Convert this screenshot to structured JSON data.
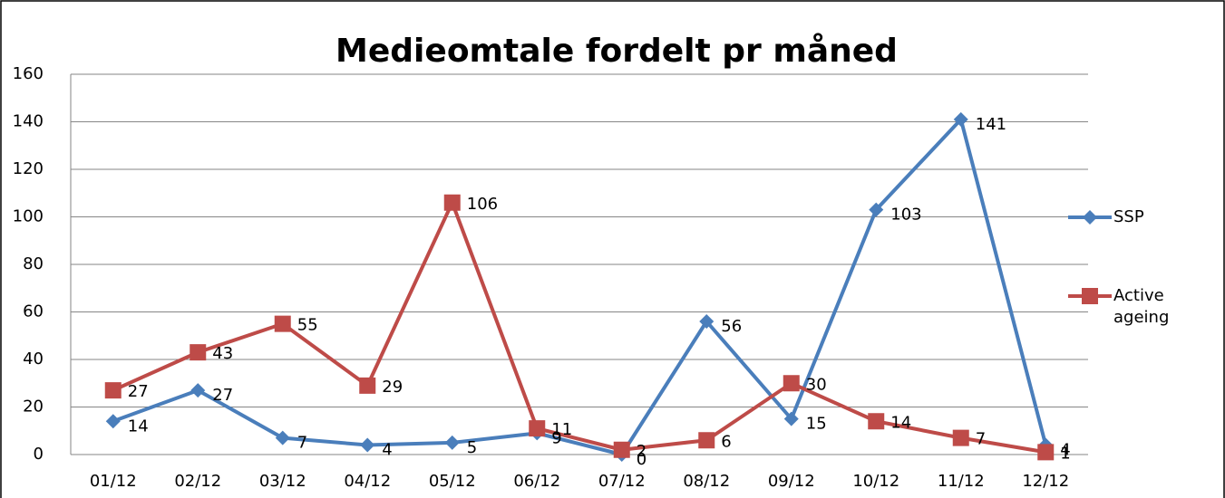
{
  "chart_data": {
    "type": "line",
    "title": "Medieomtale fordelt  pr måned",
    "categories": [
      "01/12",
      "02/12",
      "03/12",
      "04/12",
      "05/12",
      "06/12",
      "07/12",
      "08/12",
      "09/12",
      "10/12",
      "11/12",
      "12/12"
    ],
    "series": [
      {
        "name": "SSP",
        "color": "#4a7ebb",
        "marker": "diamond",
        "values": [
          14,
          27,
          7,
          4,
          5,
          9,
          0,
          56,
          15,
          103,
          141,
          4
        ]
      },
      {
        "name": "Active ageing",
        "color": "#be4b48",
        "marker": "square",
        "values": [
          27,
          43,
          55,
          29,
          106,
          11,
          2,
          6,
          30,
          14,
          7,
          1
        ]
      }
    ],
    "ylim": [
      0,
      160
    ],
    "yticks": [
      0,
      20,
      40,
      60,
      80,
      100,
      120,
      140,
      160
    ],
    "grid": true,
    "legend": "right"
  }
}
